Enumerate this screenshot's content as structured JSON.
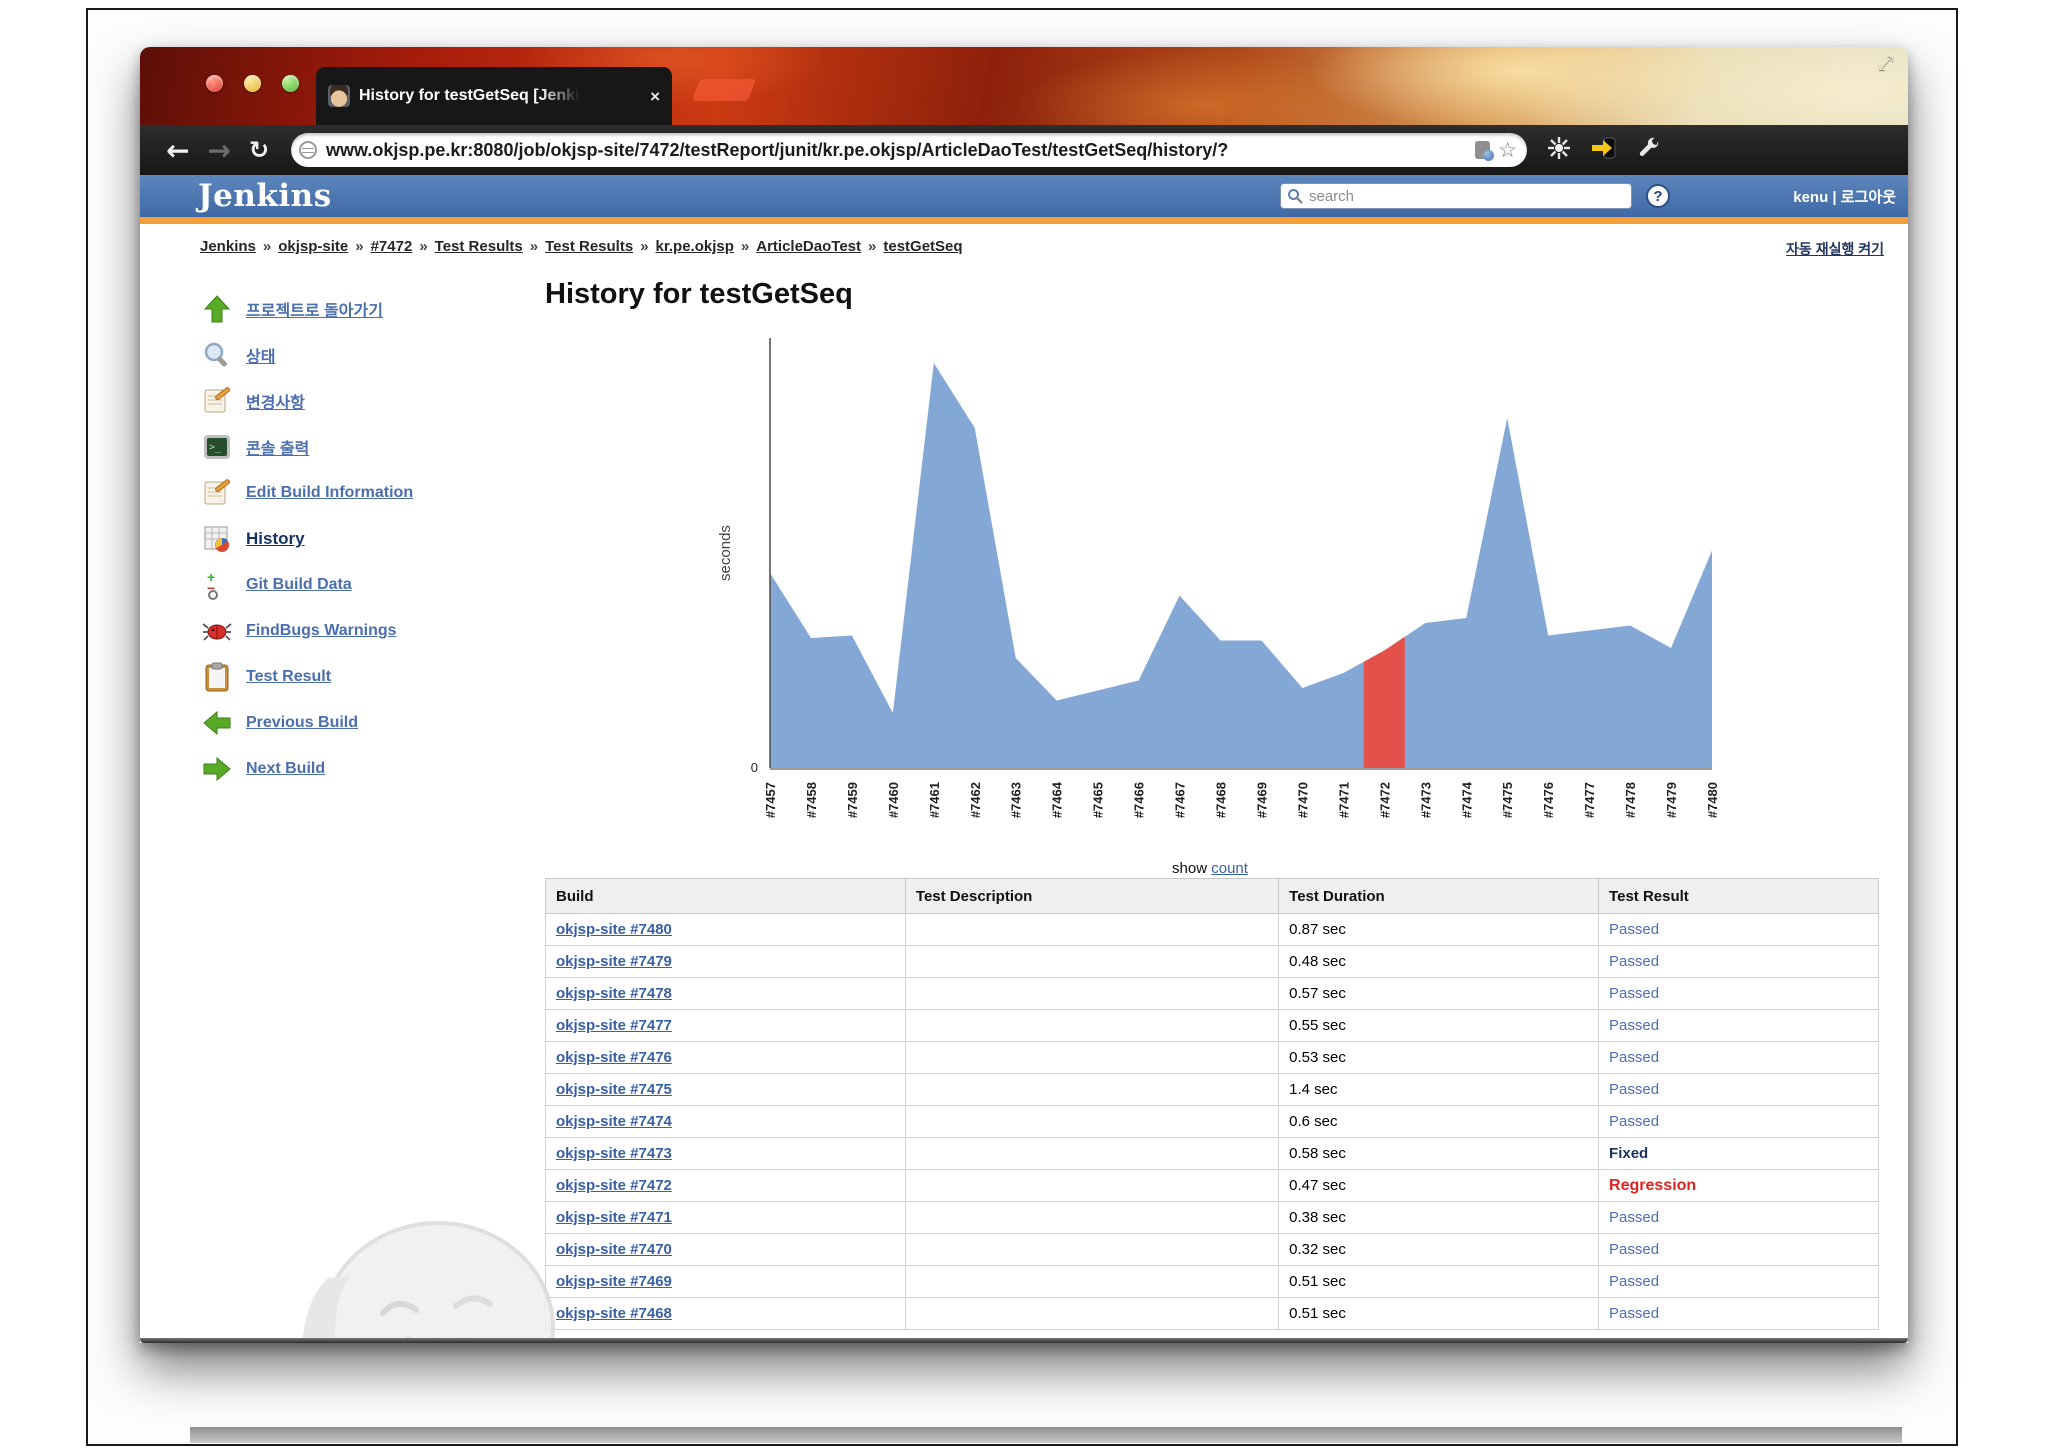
{
  "browser": {
    "tab_title": "History for testGetSeq [Jenki",
    "tab_close": "×",
    "back": "←",
    "forward": "→",
    "reload": "↻",
    "url": "www.okjsp.pe.kr:8080/job/okjsp-site/7472/testReport/junit/kr.pe.okjsp/ArticleDaoTest/testGetSeq/history/?",
    "bookmark_star": "☆",
    "expand_glyph": "⤢"
  },
  "jenkins_header": {
    "logo": "Jenkins",
    "search_placeholder": "search",
    "help": "?",
    "user": "kenu | 로그아웃"
  },
  "breadcrumb": {
    "separator": "»",
    "items": [
      "Jenkins",
      "okjsp-site",
      "#7472",
      "Test Results",
      "Test Results",
      "kr.pe.okjsp",
      "ArticleDaoTest",
      "testGetSeq"
    ]
  },
  "auto_refresh_link": "자동 재실행 켜기",
  "sidebar": {
    "items": [
      {
        "icon": "arrow-up-icon",
        "label": "프로젝트로 돌아가기"
      },
      {
        "icon": "magnifier-icon",
        "label": "상태"
      },
      {
        "icon": "notepad-icon",
        "label": "변경사항"
      },
      {
        "icon": "terminal-icon",
        "label": "콘솔 출력"
      },
      {
        "icon": "notepad-icon",
        "label": "Edit Build Information"
      },
      {
        "icon": "history-icon",
        "label": "History",
        "current": true
      },
      {
        "icon": "git-icon",
        "label": "Git Build Data"
      },
      {
        "icon": "bug-icon",
        "label": "FindBugs Warnings"
      },
      {
        "icon": "clipboard-icon",
        "label": "Test Result"
      },
      {
        "icon": "arrow-left-icon",
        "label": "Previous Build"
      },
      {
        "icon": "arrow-right-icon",
        "label": "Next Build"
      }
    ]
  },
  "main": {
    "title": "History for testGetSeq",
    "show_label": "show",
    "count_link": "count"
  },
  "chart_data": {
    "type": "area",
    "title": "History for testGetSeq",
    "ylabel": "seconds",
    "y_origin_label": "0",
    "ylim": [
      0,
      1.75
    ],
    "grid": false,
    "area_color": "#84a8d6",
    "highlight": {
      "category": "#7472",
      "color": "#e4504a",
      "reason": "Regression"
    },
    "categories": [
      "#7457",
      "#7458",
      "#7459",
      "#7460",
      "#7461",
      "#7462",
      "#7463",
      "#7464",
      "#7465",
      "#7466",
      "#7467",
      "#7468",
      "#7469",
      "#7470",
      "#7471",
      "#7472",
      "#7473",
      "#7474",
      "#7475",
      "#7476",
      "#7477",
      "#7478",
      "#7479",
      "#7480"
    ],
    "values": [
      0.78,
      0.52,
      0.53,
      0.22,
      1.62,
      1.36,
      0.44,
      0.27,
      0.31,
      0.35,
      0.69,
      0.51,
      0.51,
      0.32,
      0.38,
      0.47,
      0.58,
      0.6,
      1.4,
      0.53,
      0.55,
      0.57,
      0.48,
      0.87
    ]
  },
  "table": {
    "headers": [
      "Build",
      "Test Description",
      "Test Duration",
      "Test Result"
    ],
    "rows": [
      {
        "build": "okjsp-site #7480",
        "description": "",
        "duration": "0.87 sec",
        "result": "Passed"
      },
      {
        "build": "okjsp-site #7479",
        "description": "",
        "duration": "0.48 sec",
        "result": "Passed"
      },
      {
        "build": "okjsp-site #7478",
        "description": "",
        "duration": "0.57 sec",
        "result": "Passed"
      },
      {
        "build": "okjsp-site #7477",
        "description": "",
        "duration": "0.55 sec",
        "result": "Passed"
      },
      {
        "build": "okjsp-site #7476",
        "description": "",
        "duration": "0.53 sec",
        "result": "Passed"
      },
      {
        "build": "okjsp-site #7475",
        "description": "",
        "duration": "1.4 sec",
        "result": "Passed"
      },
      {
        "build": "okjsp-site #7474",
        "description": "",
        "duration": "0.6 sec",
        "result": "Passed"
      },
      {
        "build": "okjsp-site #7473",
        "description": "",
        "duration": "0.58 sec",
        "result": "Fixed"
      },
      {
        "build": "okjsp-site #7472",
        "description": "",
        "duration": "0.47 sec",
        "result": "Regression"
      },
      {
        "build": "okjsp-site #7471",
        "description": "",
        "duration": "0.38 sec",
        "result": "Passed"
      },
      {
        "build": "okjsp-site #7470",
        "description": "",
        "duration": "0.32 sec",
        "result": "Passed"
      },
      {
        "build": "okjsp-site #7469",
        "description": "",
        "duration": "0.51 sec",
        "result": "Passed"
      },
      {
        "build": "okjsp-site #7468",
        "description": "",
        "duration": "0.51 sec",
        "result": "Passed"
      }
    ]
  }
}
